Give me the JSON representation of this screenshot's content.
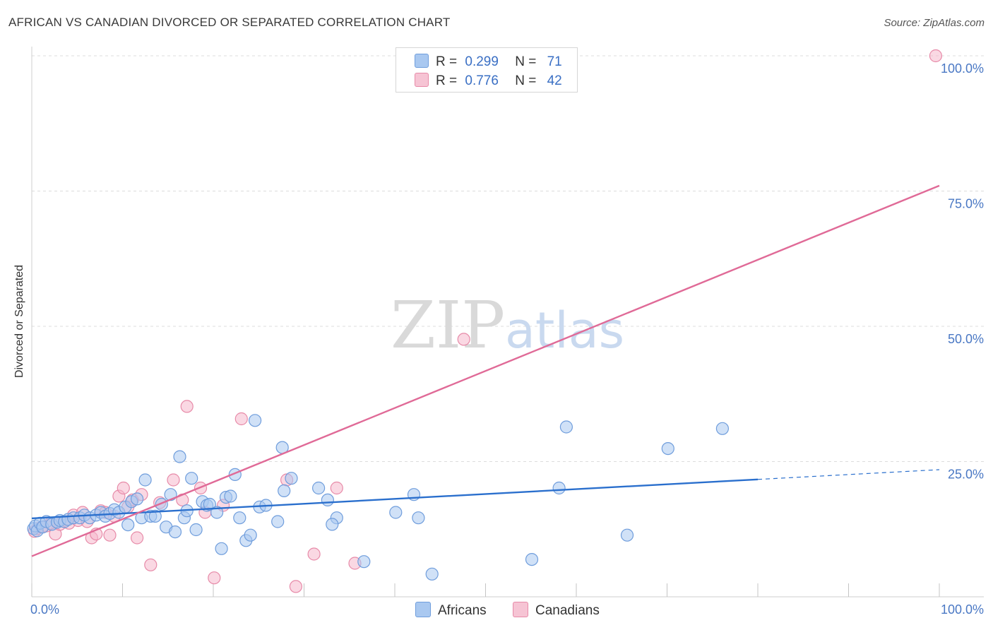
{
  "title": "AFRICAN VS CANADIAN DIVORCED OR SEPARATED CORRELATION CHART",
  "source": "Source: ZipAtlas.com",
  "watermark": {
    "zip": "ZIP",
    "atlas": "atlas"
  },
  "legend": {
    "africans": {
      "r_label": "R =",
      "r_value": "0.299",
      "n_label": "N =",
      "n_value": "71"
    },
    "canadians": {
      "r_label": "R =",
      "r_value": "0.776",
      "n_label": "N =",
      "n_value": "42"
    }
  },
  "bottom_legend": {
    "africans": "Africans",
    "canadians": "Canadians"
  },
  "colors": {
    "blue_fill": "#a9c8f0",
    "blue_stroke": "#6f9ddc",
    "blue_line": "#2a6fcd",
    "pink_fill": "#f6b8cc",
    "pink_stroke": "#e78aa8",
    "pink_line": "#e06a97"
  },
  "chart_data": {
    "type": "scatter",
    "title": "AFRICAN VS CANADIAN DIVORCED OR SEPARATED CORRELATION CHART",
    "xlabel": "",
    "ylabel": "Divorced or Separated",
    "xlim": [
      0,
      100
    ],
    "ylim": [
      0,
      100
    ],
    "x_tick_labels": [
      "0.0%",
      "100.0%"
    ],
    "y_tick_labels": [
      "25.0%",
      "50.0%",
      "75.0%",
      "100.0%"
    ],
    "y_ticks": [
      25,
      50,
      75,
      100
    ],
    "grid": true,
    "series": [
      {
        "name": "Africans",
        "r": 0.299,
        "n": 71,
        "points": [
          [
            0.2,
            12.6
          ],
          [
            0.4,
            13.1
          ],
          [
            0.6,
            12.2
          ],
          [
            0.9,
            13.6
          ],
          [
            1.2,
            12.9
          ],
          [
            1.6,
            13.9
          ],
          [
            2.2,
            13.4
          ],
          [
            2.8,
            13.8
          ],
          [
            3.1,
            14.1
          ],
          [
            3.6,
            13.9
          ],
          [
            4.0,
            14.3
          ],
          [
            4.6,
            14.6
          ],
          [
            5.3,
            14.6
          ],
          [
            5.8,
            15.1
          ],
          [
            6.4,
            14.6
          ],
          [
            7.1,
            15.1
          ],
          [
            7.6,
            15.6
          ],
          [
            8.1,
            14.9
          ],
          [
            8.6,
            15.4
          ],
          [
            9.1,
            16.1
          ],
          [
            9.6,
            15.6
          ],
          [
            10.3,
            16.6
          ],
          [
            10.6,
            13.3
          ],
          [
            11.0,
            17.6
          ],
          [
            11.6,
            18.1
          ],
          [
            12.1,
            14.6
          ],
          [
            12.5,
            21.6
          ],
          [
            13.1,
            14.9
          ],
          [
            13.6,
            14.9
          ],
          [
            14.3,
            17.1
          ],
          [
            14.8,
            12.9
          ],
          [
            15.3,
            18.9
          ],
          [
            15.8,
            12.0
          ],
          [
            16.3,
            25.9
          ],
          [
            16.8,
            14.6
          ],
          [
            17.1,
            15.9
          ],
          [
            17.6,
            21.9
          ],
          [
            18.1,
            12.4
          ],
          [
            18.8,
            17.6
          ],
          [
            19.3,
            16.9
          ],
          [
            19.6,
            17.1
          ],
          [
            20.4,
            15.6
          ],
          [
            20.9,
            8.9
          ],
          [
            21.4,
            18.4
          ],
          [
            21.9,
            18.6
          ],
          [
            22.4,
            22.6
          ],
          [
            22.9,
            14.6
          ],
          [
            23.6,
            10.4
          ],
          [
            24.1,
            11.4
          ],
          [
            24.6,
            32.6
          ],
          [
            25.1,
            16.6
          ],
          [
            25.8,
            16.9
          ],
          [
            27.1,
            13.9
          ],
          [
            27.6,
            27.6
          ],
          [
            27.8,
            19.6
          ],
          [
            28.6,
            21.9
          ],
          [
            31.6,
            20.1
          ],
          [
            32.6,
            17.9
          ],
          [
            33.6,
            14.6
          ],
          [
            33.1,
            13.4
          ],
          [
            36.6,
            6.5
          ],
          [
            40.1,
            15.6
          ],
          [
            42.1,
            18.9
          ],
          [
            42.6,
            14.6
          ],
          [
            44.1,
            4.2
          ],
          [
            55.1,
            6.9
          ],
          [
            58.1,
            20.1
          ],
          [
            58.9,
            31.4
          ],
          [
            65.6,
            11.4
          ],
          [
            70.1,
            27.4
          ],
          [
            76.1,
            31.1
          ]
        ],
        "trend": {
          "x0": 0,
          "y0": 14.5,
          "x1": 80,
          "y1": 21.7,
          "dashed_to_x": 100,
          "dashed_to_y": 23.5
        }
      },
      {
        "name": "Canadians",
        "r": 0.776,
        "n": 42,
        "points": [
          [
            0.3,
            12.1
          ],
          [
            0.6,
            12.6
          ],
          [
            1.1,
            12.9
          ],
          [
            1.6,
            13.1
          ],
          [
            2.1,
            13.6
          ],
          [
            2.6,
            11.6
          ],
          [
            3.1,
            13.4
          ],
          [
            3.6,
            13.9
          ],
          [
            4.1,
            13.6
          ],
          [
            4.6,
            15.1
          ],
          [
            5.1,
            14.1
          ],
          [
            5.6,
            15.6
          ],
          [
            6.1,
            13.9
          ],
          [
            6.6,
            10.9
          ],
          [
            7.1,
            11.6
          ],
          [
            7.6,
            15.9
          ],
          [
            8.1,
            15.6
          ],
          [
            8.6,
            11.4
          ],
          [
            9.1,
            14.9
          ],
          [
            9.6,
            18.6
          ],
          [
            10.1,
            20.1
          ],
          [
            10.6,
            16.6
          ],
          [
            11.1,
            17.9
          ],
          [
            11.6,
            10.9
          ],
          [
            12.1,
            18.9
          ],
          [
            13.1,
            5.9
          ],
          [
            14.1,
            17.4
          ],
          [
            15.6,
            21.6
          ],
          [
            16.6,
            17.9
          ],
          [
            17.1,
            35.2
          ],
          [
            18.6,
            20.1
          ],
          [
            19.1,
            15.6
          ],
          [
            20.1,
            3.5
          ],
          [
            21.1,
            16.9
          ],
          [
            23.1,
            32.9
          ],
          [
            28.1,
            21.6
          ],
          [
            29.1,
            1.9
          ],
          [
            31.1,
            7.9
          ],
          [
            33.6,
            20.1
          ],
          [
            35.6,
            6.2
          ],
          [
            47.6,
            47.6
          ],
          [
            99.6,
            100.0
          ]
        ],
        "trend": {
          "x0": 0,
          "y0": 7.5,
          "x1": 100,
          "y1": 76.0
        }
      }
    ]
  }
}
